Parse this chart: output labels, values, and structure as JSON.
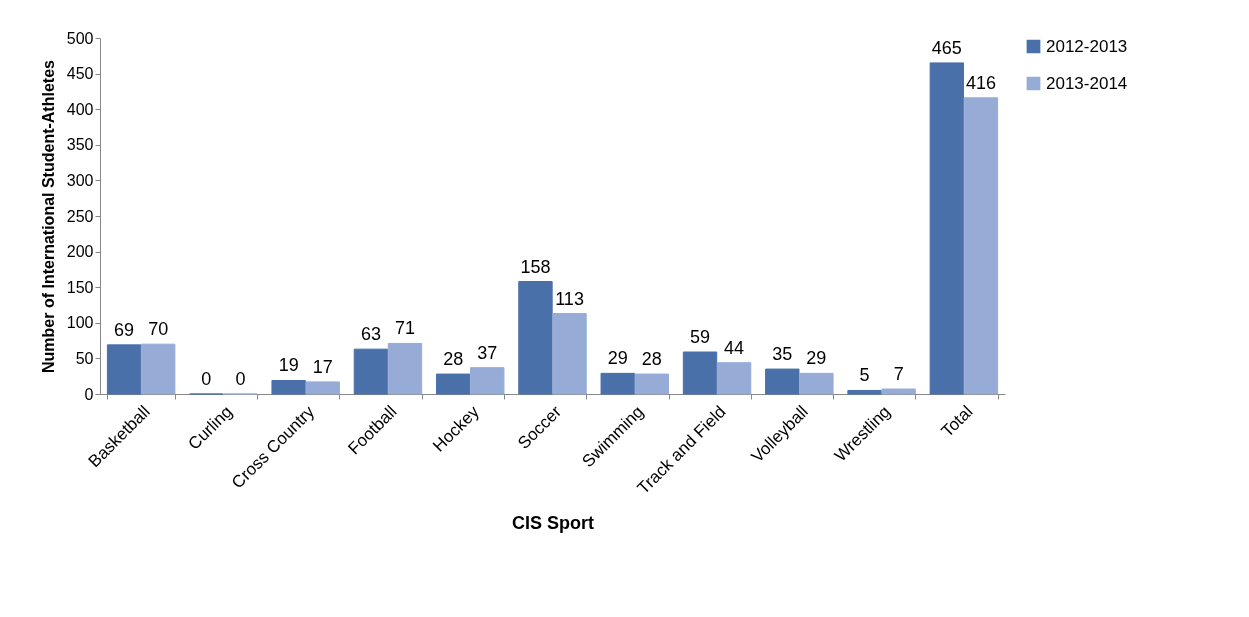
{
  "chart_data": {
    "type": "bar",
    "xlabel": "CIS Sport",
    "ylabel": "Number of International Student-Athletes",
    "categories": [
      "Basketball",
      "Curling",
      "Cross Country",
      "Football",
      "Hockey",
      "Soccer",
      "Swimming",
      "Track and Field",
      "Volleyball",
      "Wrestling",
      "Total"
    ],
    "series": [
      {
        "name": "2012-2013",
        "color": "#4a70aa",
        "values": [
          69,
          0,
          19,
          63,
          28,
          158,
          29,
          59,
          35,
          5,
          465
        ]
      },
      {
        "name": "2013-2014",
        "color": "#96acd6",
        "values": [
          70,
          0,
          17,
          71,
          37,
          113,
          28,
          44,
          29,
          7,
          416
        ]
      }
    ],
    "ylim": [
      0,
      500
    ],
    "yticks": [
      0,
      50,
      100,
      150,
      200,
      250,
      300,
      350,
      400,
      450,
      500
    ],
    "grid": false,
    "legend": "right",
    "data_labels": true
  }
}
